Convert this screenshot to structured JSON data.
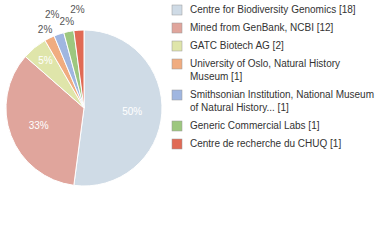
{
  "chart_data": {
    "type": "pie",
    "categories": [
      "Centre for Biodiversity Genomics [18]",
      "Mined from GenBank, NCBI [12]",
      "GATC Biotech AG [2]",
      "University of Oslo, Natural History Museum [1]",
      "Smithsonian Institution, National Museum of Natural History... [1]",
      "Generic Commercial Labs [1]",
      "Centre de recherche du CHUQ [1]"
    ],
    "values": [
      50,
      33,
      5,
      2,
      2,
      2,
      2
    ],
    "value_labels": [
      "50%",
      "33%",
      "5%",
      "2%",
      "2%",
      "2%",
      "2%"
    ],
    "colors": [
      "#cfdbe6",
      "#e0a59c",
      "#dfe5aa",
      "#f0ac80",
      "#a0b6e0",
      "#9dc77f",
      "#e06a55"
    ],
    "data_labels": true,
    "legend": "right"
  }
}
